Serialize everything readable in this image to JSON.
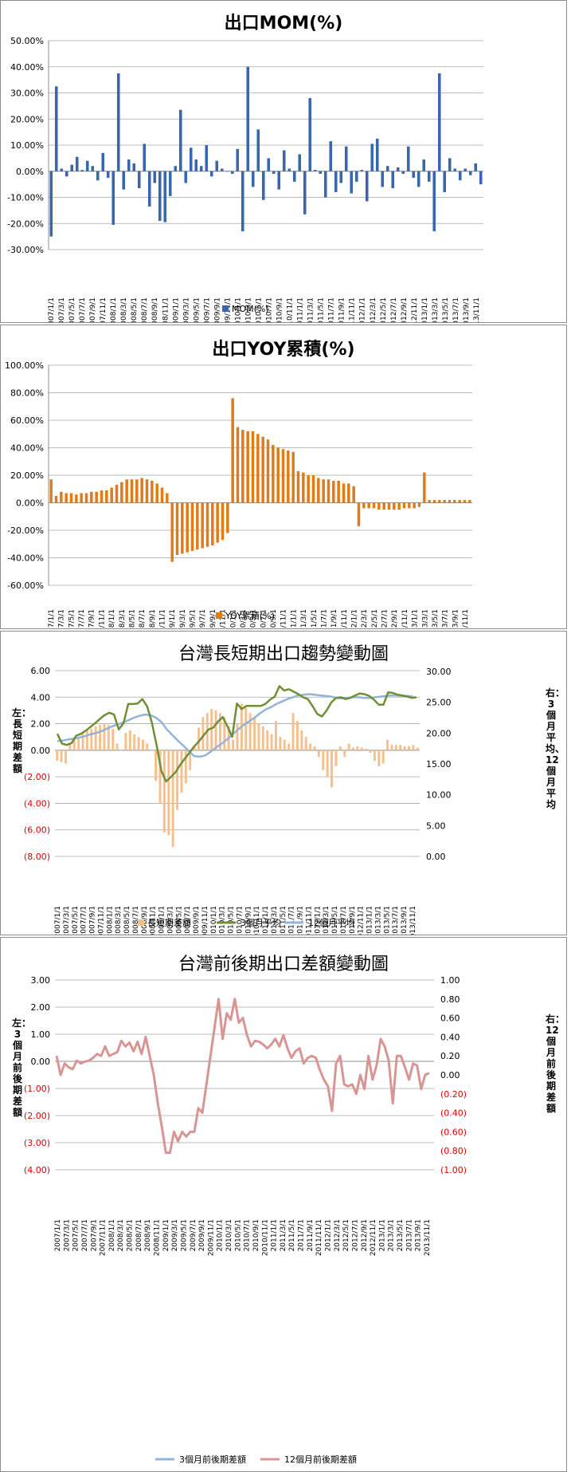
{
  "months_tick_labels": [
    "2007/1/1",
    "2007/3/1",
    "2007/5/1",
    "2007/7/1",
    "2007/9/1",
    "2007/11/1",
    "2008/1/1",
    "2008/3/1",
    "2008/5/1",
    "2008/7/1",
    "2008/9/1",
    "2008/11/1",
    "2009/1/1",
    "2009/3/1",
    "2009/5/1",
    "2009/7/1",
    "2009/9/1",
    "2009/11/1",
    "2010/1/1",
    "2010/3/1",
    "2010/5/1",
    "2010/7/1",
    "2010/9/1",
    "2010/11/1",
    "2011/1/1",
    "2011/3/1",
    "2011/5/1",
    "2011/7/1",
    "2011/9/1",
    "2011/11/1",
    "2012/1/1",
    "2012/3/1",
    "2012/5/1",
    "2012/7/1",
    "2012/9/1",
    "2012/11/1",
    "2013/1/1",
    "2013/3/1",
    "2013/5/1",
    "2013/7/1",
    "2013/9/1",
    "2013/11/1"
  ],
  "colors": {
    "blue": "#3a66ad",
    "orange": "#e07b18",
    "peach": "#f6c08e",
    "green": "#6f8f35",
    "lightblue": "#93b4da",
    "pink": "#d89593",
    "red": "#e00000"
  },
  "chart_data": [
    {
      "type": "bar",
      "title": "出口MOM(%)",
      "legend": [
        "MOM(%)"
      ],
      "ylim": [
        -30,
        50
      ],
      "yticks": [
        "50.00%",
        "40.00%",
        "30.00%",
        "20.00%",
        "10.00%",
        "0.00%",
        "-10.00%",
        "-20.00%",
        "-30.00%"
      ],
      "x_start": "2007/1/1",
      "x_end": "2013/12/1",
      "series": [
        {
          "name": "MOM(%)",
          "values": [
            -25,
            32.5,
            1,
            -2,
            2.5,
            5.5,
            0.5,
            4,
            2,
            -3.5,
            7,
            -2.5,
            -20.5,
            37.5,
            -7,
            4.5,
            3,
            -6.5,
            10.5,
            -13.5,
            -4.5,
            -19,
            -19.5,
            -9.5,
            2,
            23.5,
            -4.5,
            9,
            4.5,
            2,
            10,
            -2,
            4,
            1,
            0,
            -1,
            8.5,
            -23,
            40,
            -6,
            16,
            -11,
            5,
            -1,
            -7,
            8,
            1,
            -4,
            6.5,
            -16.5,
            28,
            0.5,
            -1,
            -10,
            11.5,
            -8,
            -4.5,
            9.5,
            -8.5,
            -4,
            0.5,
            -11.5,
            10.5,
            12.5,
            -6,
            2,
            -6.5,
            1.5,
            -1,
            9.5,
            -2.5,
            -6,
            4.5,
            -4,
            -23,
            37.5,
            -8,
            5,
            1,
            -3.5,
            1,
            -1.5,
            3,
            -5
          ]
        }
      ]
    },
    {
      "type": "bar",
      "title": "出口YOY累積(%)",
      "legend": [
        "YOY累積(%)"
      ],
      "ylim": [
        -60,
        100
      ],
      "yticks": [
        "100.00%",
        "80.00%",
        "60.00%",
        "40.00%",
        "20.00%",
        "0.00%",
        "-20.00%",
        "-40.00%",
        "-60.00%"
      ],
      "x_start": "2007/1/1",
      "x_end": "2013/12/1",
      "series": [
        {
          "name": "YOY累積(%)",
          "values": [
            17,
            5,
            8,
            7,
            7,
            6,
            7,
            7,
            8,
            8,
            9,
            9,
            11,
            13,
            15,
            17,
            17,
            17,
            18,
            17,
            16,
            14,
            11,
            7,
            -43,
            -38,
            -37,
            -36,
            -35,
            -34,
            -33,
            -32,
            -31,
            -29,
            -27,
            -22,
            76,
            55,
            53,
            52,
            52,
            50,
            48,
            46,
            42,
            40,
            39,
            38,
            37,
            23,
            22,
            20,
            20,
            18,
            17,
            17,
            16,
            16,
            14,
            14,
            12,
            -17,
            -4,
            -4,
            -4,
            -5,
            -5,
            -5,
            -5,
            -5,
            -4,
            -4,
            -4,
            -3,
            22,
            2,
            2,
            2,
            2,
            2,
            2,
            2,
            2,
            2
          ]
        }
      ]
    },
    {
      "type": "bar+line",
      "title": "台灣長短期出口趨勢變動圖",
      "left_axis_label": "左：長短期差額",
      "right_axis_label": "右：3個月平均、12個月平均",
      "legend": [
        "長短期差額",
        "3個月平均",
        "12個月平均"
      ],
      "ylim_left": [
        -8,
        6
      ],
      "ylim_right": [
        0,
        30
      ],
      "yticks_left": [
        "6.00",
        "4.00",
        "2.00",
        "0.00",
        "(2.00)",
        "(4.00)",
        "(6.00)",
        "(8.00)"
      ],
      "yticks_right": [
        "30.00",
        "25.00",
        "20.00",
        "15.00",
        "10.00",
        "5.00",
        "0.00"
      ],
      "x_start": "2007/1/1",
      "x_end": "2013/12/1",
      "series": [
        {
          "name": "長短期差額",
          "axis": "left",
          "values": [
            -0.8,
            -0.9,
            -1.0,
            0.5,
            0.8,
            1.0,
            1.3,
            1.5,
            1.6,
            1.8,
            1.9,
            2.0,
            1.9,
            1.6,
            0.5,
            0,
            1.3,
            1.5,
            1.2,
            1.0,
            0.8,
            0.5,
            0,
            -2.3,
            -4.0,
            -6.2,
            -6.4,
            -7.3,
            -4.5,
            -3.2,
            -2.5,
            -1.5,
            0.3,
            1.7,
            2.5,
            2.8,
            3.1,
            3.0,
            2.8,
            2.5,
            1.8,
            0.8,
            2.0,
            3.5,
            3.2,
            2.8,
            2.5,
            2.0,
            1.8,
            1.5,
            1.2,
            2.2,
            1.0,
            0.8,
            0.5,
            2.8,
            2.2,
            1.5,
            1.0,
            0.5,
            0.3,
            -0.5,
            -1.5,
            -2.0,
            -2.8,
            -1.2,
            0.3,
            -0.5,
            0.5,
            0.2,
            0.3,
            0.2,
            0.1,
            -0.2,
            -0.8,
            -1.2,
            -1.0,
            0.8,
            0.4,
            0.4,
            0.4,
            0.3,
            0.3,
            0.4,
            0.2
          ]
        },
        {
          "name": "3個月平均",
          "axis": "right",
          "values": [
            19.8,
            18.2,
            18.0,
            18.3,
            19.5,
            19.8,
            20.3,
            20.9,
            21.5,
            22.2,
            22.8,
            23.2,
            22.9,
            20.5,
            21.5,
            24.6,
            24.6,
            24.7,
            25.4,
            24.2,
            21.6,
            18.0,
            13.8,
            12.1,
            12.8,
            13.6,
            14.8,
            15.8,
            16.8,
            17.8,
            18.6,
            19.6,
            20.5,
            20.8,
            21.8,
            22.5,
            21.0,
            19.3,
            24.7,
            23.8,
            24.3,
            24.3,
            24.3,
            24.3,
            24.6,
            25.3,
            25.8,
            27.5,
            26.8,
            27.0,
            26.6,
            26.2,
            25.7,
            25.4,
            24.3,
            23.0,
            22.6,
            23.6,
            24.9,
            25.6,
            25.7,
            25.4,
            25.6,
            26.0,
            26.3,
            26.2,
            25.9,
            25.3,
            24.5,
            24.5,
            26.5,
            26.4,
            26.1,
            26.0,
            25.8,
            25.6,
            25.7
          ]
        },
        {
          "name": "12個月平均",
          "axis": "right",
          "values": [
            18.6,
            18.7,
            18.9,
            19.0,
            19.2,
            19.4,
            19.7,
            19.9,
            20.2,
            20.6,
            21.0,
            21.3,
            21.6,
            22.0,
            22.4,
            22.7,
            22.9,
            22.8,
            22.4,
            21.7,
            20.5,
            19.6,
            18.7,
            17.9,
            17.0,
            16.2,
            16.1,
            16.3,
            16.9,
            17.6,
            18.2,
            18.9,
            19.7,
            20.5,
            21.2,
            21.8,
            22.4,
            23.1,
            23.7,
            24.1,
            24.6,
            25.0,
            25.4,
            25.7,
            26.0,
            26.1,
            26.2,
            26.1,
            26.0,
            25.9,
            25.8,
            25.6,
            25.5,
            25.6,
            25.7,
            25.7,
            25.6,
            25.6,
            25.7,
            25.8,
            25.9,
            26.0,
            26.0,
            25.9,
            25.9,
            25.8
          ]
        }
      ]
    },
    {
      "type": "line",
      "title": "台灣前後期出口差額變動圖",
      "left_axis_label": "左：3個月前後期差額",
      "right_axis_label": "右：12個月前後期差額",
      "legend": [
        "3個月前後期差額",
        "12個月前後期差額"
      ],
      "ylim_left": [
        -4,
        3
      ],
      "ylim_right": [
        -1,
        1
      ],
      "yticks_left": [
        "3.00",
        "2.00",
        "1.00",
        "0.00",
        "(1.00)",
        "(2.00)",
        "(3.00)",
        "(4.00)"
      ],
      "yticks_right": [
        "1.00",
        "0.80",
        "0.60",
        "0.40",
        "0.20",
        "0.00",
        "(0.20)",
        "(0.40)",
        "(0.60)",
        "(0.80)",
        "(1.00)"
      ],
      "x_start": "2007/1/1",
      "x_end": "2013/12/1",
      "series": [
        {
          "name": "3個月前後期差額",
          "axis": "left",
          "values": []
        },
        {
          "name": "12個月前後期差額",
          "axis": "right",
          "values": [
            0.2,
            0.0,
            0.12,
            0.08,
            0.06,
            0.15,
            0.12,
            0.14,
            0.15,
            0.18,
            0.22,
            0.2,
            0.3,
            0.2,
            0.22,
            0.24,
            0.36,
            0.3,
            0.34,
            0.25,
            0.35,
            0.22,
            0.4,
            0.2,
            0.0,
            -0.3,
            -0.55,
            -0.82,
            -0.82,
            -0.6,
            -0.7,
            -0.6,
            -0.65,
            -0.6,
            -0.6,
            -0.35,
            -0.4,
            -0.1,
            0.2,
            0.5,
            0.8,
            0.38,
            0.65,
            0.58,
            0.8,
            0.55,
            0.6,
            0.42,
            0.3,
            0.36,
            0.35,
            0.32,
            0.28,
            0.32,
            0.38,
            0.3,
            0.42,
            0.28,
            0.18,
            0.25,
            0.28,
            0.12,
            0.18,
            0.2,
            0.18,
            0.05,
            -0.05,
            -0.12,
            -0.38,
            0.12,
            0.2,
            -0.1,
            -0.12,
            -0.1,
            -0.2,
            0.0,
            -0.15,
            0.2,
            -0.05,
            0.1,
            0.38,
            0.3,
            0.15,
            -0.3,
            0.2,
            0.2,
            0.08,
            -0.05,
            0.12,
            0.1,
            -0.15,
            0.0,
            0.02
          ]
        }
      ]
    }
  ]
}
